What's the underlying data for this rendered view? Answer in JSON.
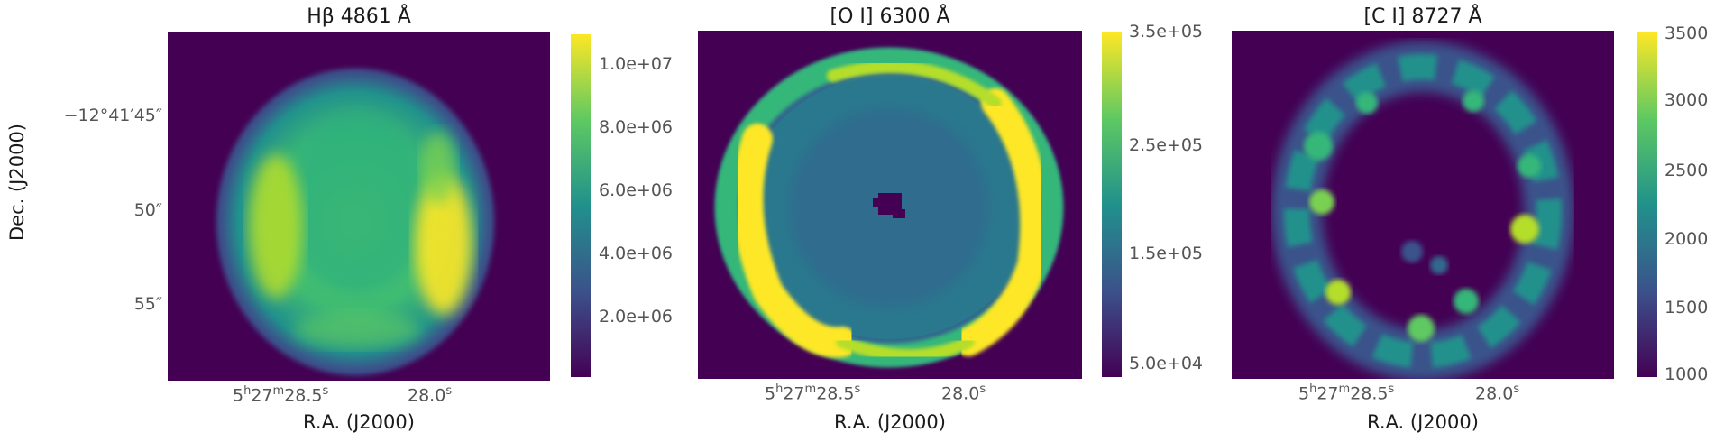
{
  "panels": [
    {
      "title": "Hβ 4861 Å",
      "xlabel": "R.A. (J2000)",
      "ylabel": "Dec. (J2000)",
      "xticks": [
        {
          "h": "5",
          "m": "27",
          "s": "28.5"
        },
        {
          "s": "28.0"
        }
      ],
      "yticks": [
        "−12°41′45″",
        "50″",
        "55″"
      ],
      "colorbar": [
        "1.0e+07",
        "8.0e+06",
        "6.0e+06",
        "4.0e+06",
        "2.0e+06"
      ]
    },
    {
      "title": "[O I] 6300 Å",
      "xlabel": "R.A. (J2000)",
      "xticks": [
        {
          "h": "5",
          "m": "27",
          "s": "28.5"
        },
        {
          "s": "28.0"
        }
      ],
      "colorbar": [
        "3.5e+05",
        "2.5e+05",
        "1.5e+05",
        "5.0e+04"
      ]
    },
    {
      "title": "[C I] 8727 Å",
      "xlabel": "R.A. (J2000)",
      "xticks": [
        {
          "h": "5",
          "m": "27",
          "s": "28.5"
        },
        {
          "s": "28.0"
        }
      ],
      "colorbar": [
        "3500",
        "3000",
        "2500",
        "2000",
        "1500",
        "1000"
      ]
    }
  ],
  "colormap": "viridis",
  "colors": {
    "background": "#440154",
    "low": "#3b528b",
    "mid": "#21918c",
    "high": "#5ec962",
    "max": "#fde725"
  }
}
